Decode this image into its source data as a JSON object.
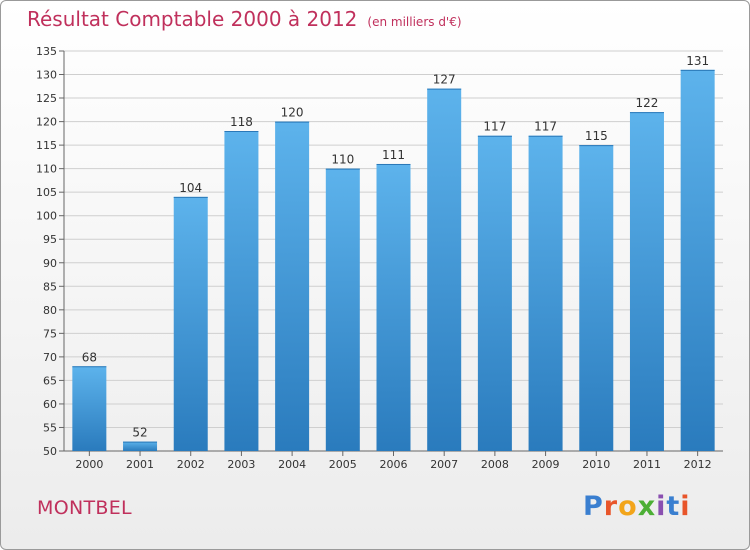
{
  "header": {
    "title": "Résultat Comptable 2000 à 2012",
    "subtitle": "(en milliers d'€)"
  },
  "commune": "MONTBEL",
  "logo": {
    "text": "Proxiti",
    "letters": [
      {
        "ch": "P",
        "color": "#3a7fd0"
      },
      {
        "ch": "r",
        "color": "#e8552a"
      },
      {
        "ch": "o",
        "color": "#f2a51a"
      },
      {
        "ch": "x",
        "color": "#4caf35"
      },
      {
        "ch": "i",
        "color": "#8a4fb0"
      },
      {
        "ch": "t",
        "color": "#3a7fd0"
      },
      {
        "ch": "i",
        "color": "#e8552a"
      }
    ]
  },
  "colors": {
    "bar_top": "#5db3ec",
    "bar_bottom": "#2a7bbd",
    "title": "#c0305c"
  },
  "chart_data": {
    "type": "bar",
    "title": "Résultat Comptable 2000 à 2012",
    "subtitle": "(en milliers d'€)",
    "categories": [
      "2000",
      "2001",
      "2002",
      "2003",
      "2004",
      "2005",
      "2006",
      "2007",
      "2008",
      "2009",
      "2010",
      "2011",
      "2012"
    ],
    "values": [
      68,
      52,
      104,
      118,
      120,
      110,
      111,
      127,
      117,
      117,
      115,
      122,
      131
    ],
    "ylim": [
      50,
      135
    ],
    "yticks": [
      50,
      55,
      60,
      65,
      70,
      75,
      80,
      85,
      90,
      95,
      100,
      105,
      110,
      115,
      120,
      125,
      130,
      135
    ],
    "grid": true,
    "data_labels": true
  }
}
